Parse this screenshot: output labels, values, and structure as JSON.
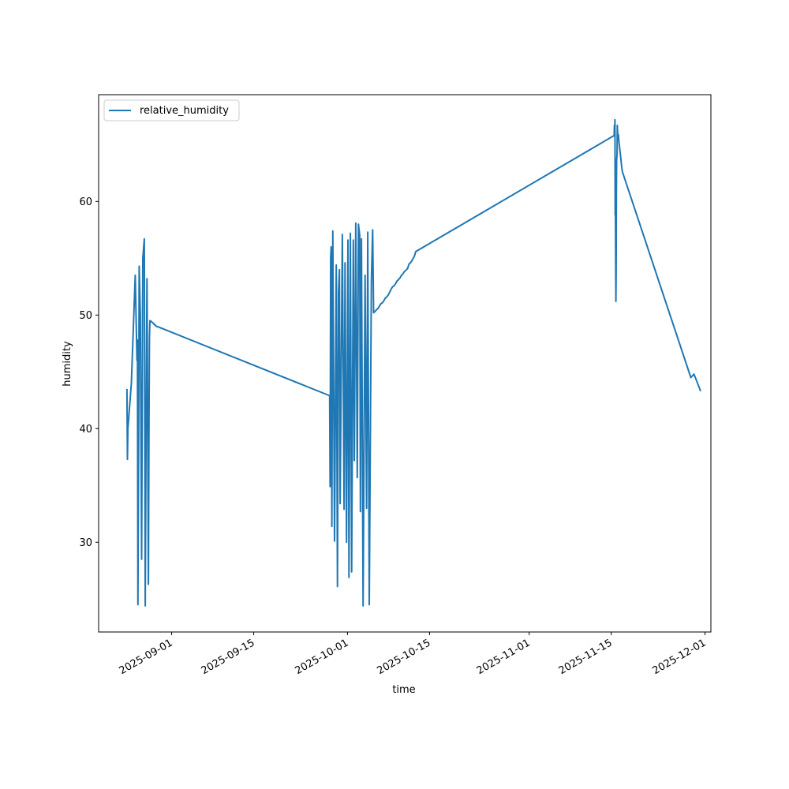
{
  "chart_data": {
    "type": "line",
    "title": "",
    "xlabel": "time",
    "ylabel": "humidity",
    "xlim": [
      "2025-08-19T13:00",
      "2025-12-02T00:00"
    ],
    "ylim": [
      22.1,
      69.4
    ],
    "x_ticks": [
      "2025-09-01",
      "2025-09-15",
      "2025-10-01",
      "2025-10-15",
      "2025-11-01",
      "2025-11-15",
      "2025-12-01"
    ],
    "y_ticks": [
      30,
      40,
      50,
      60
    ],
    "grid": false,
    "legend": {
      "position": "upper-left"
    },
    "series": [
      {
        "name": "relative_humidity",
        "color": "#1f77b4",
        "x": [
          "2025-08-24T09:00",
          "2025-08-24T11:00",
          "2025-08-24T13:00",
          "2025-08-25T03:00",
          "2025-08-25T19:00",
          "2025-08-26T02:00",
          "2025-08-26T04:00",
          "2025-08-26T06:00",
          "2025-08-26T09:00",
          "2025-08-26T11:00",
          "2025-08-26T16:00",
          "2025-08-26T21:00",
          "2025-08-27T02:00",
          "2025-08-27T08:00",
          "2025-08-27T10:00",
          "2025-08-27T12:00",
          "2025-08-27T15:00",
          "2025-08-27T19:00",
          "2025-08-28T01:00",
          "2025-08-28T03:00",
          "2025-08-28T05:00",
          "2025-08-28T07:00",
          "2025-08-28T09:00",
          "2025-08-28T14:00",
          "2025-08-28T19:00",
          "2025-08-28T21:00",
          "2025-08-28T23:00",
          "2025-08-29T01:00",
          "2025-08-29T04:00",
          "2025-08-29T06:00",
          "2025-08-29T09:00",
          "2025-08-29T12:00",
          "2025-09-27T23:00",
          "2025-09-28T01:00",
          "2025-09-28T03:00",
          "2025-09-28T05:00",
          "2025-09-28T08:00",
          "2025-09-28T12:00",
          "2025-09-28T19:00",
          "2025-09-29T02:00",
          "2025-09-29T07:00",
          "2025-09-29T11:00",
          "2025-09-29T15:00",
          "2025-09-29T18:00",
          "2025-09-30T03:00",
          "2025-09-30T10:00",
          "2025-09-30T14:00",
          "2025-09-30T20:00",
          "2025-10-01T02:00",
          "2025-10-01T06:00",
          "2025-10-01T12:00",
          "2025-10-01T17:00",
          "2025-10-02T00:00",
          "2025-10-02T04:00",
          "2025-10-02T10:00",
          "2025-10-02T16:00",
          "2025-10-02T21:00",
          "2025-10-03T02:00",
          "2025-10-03T05:00",
          "2025-10-03T09:00",
          "2025-10-03T16:00",
          "2025-10-04T00:00",
          "2025-10-04T06:00",
          "2025-10-04T11:00",
          "2025-10-04T17:00",
          "2025-10-05T02:00",
          "2025-10-05T07:00",
          "2025-10-05T11:00",
          "2025-10-05T16:00",
          "2025-10-06T00:00",
          "2025-10-06T06:00",
          "2025-10-06T11:00",
          "2025-10-06T17:00",
          "2025-10-07T00:00",
          "2025-10-07T06:00",
          "2025-10-07T11:00",
          "2025-10-07T17:00",
          "2025-10-08T00:00",
          "2025-10-08T04:00",
          "2025-10-08T07:00",
          "2025-10-08T11:00",
          "2025-10-08T17:00",
          "2025-10-09T00:00",
          "2025-10-09T06:00",
          "2025-10-09T11:00",
          "2025-10-09T16:00",
          "2025-10-10T00:00",
          "2025-10-10T05:00",
          "2025-10-10T10:00",
          "2025-10-10T16:00",
          "2025-10-11T02:00",
          "2025-10-11T06:00",
          "2025-10-11T09:00",
          "2025-10-11T12:00",
          "2025-10-11T18:00",
          "2025-10-12T00:00",
          "2025-10-12T05:00",
          "2025-10-12T08:00",
          "2025-10-12T12:00",
          "2025-10-12T14:00",
          "2025-10-12T16:00",
          "2025-11-15T12:00",
          "2025-11-15T13:00",
          "2025-11-15T14:00",
          "2025-11-15T15:00",
          "2025-11-15T16:00",
          "2025-11-15T17:00",
          "2025-11-15T18:00",
          "2025-11-15T19:00",
          "2025-11-15T20:00",
          "2025-11-15T21:00",
          "2025-11-15T22:00",
          "2025-11-16T00:00",
          "2025-11-16T01:00",
          "2025-11-16T03:00",
          "2025-11-16T05:00",
          "2025-11-16T07:00",
          "2025-11-16T09:00",
          "2025-11-16T11:00",
          "2025-11-16T13:00",
          "2025-11-16T15:00",
          "2025-11-16T17:00",
          "2025-11-16T19:00",
          "2025-11-16T22:00",
          "2025-11-28T14:00",
          "2025-11-29T03:00",
          "2025-11-30T06:00"
        ],
        "y": [
          43.5,
          37.3,
          40.0,
          44.0,
          53.5,
          46.0,
          47.8,
          24.5,
          40.0,
          54.3,
          50.0,
          28.5,
          55.0,
          56.7,
          40.0,
          24.4,
          38.0,
          53.2,
          26.3,
          40.0,
          48.0,
          49.5,
          49.5,
          49.4,
          49.3,
          49.3,
          49.2,
          49.2,
          49.1,
          49.1,
          49.0,
          49.0,
          42.9,
          34.9,
          55.0,
          56.0,
          31.4,
          57.4,
          30.1,
          54.4,
          26.1,
          52.0,
          54.0,
          33.4,
          57.1,
          32.9,
          54.6,
          30.0,
          56.6,
          26.9,
          57.2,
          27.4,
          56.6,
          37.2,
          58.1,
          35.7,
          58.0,
          57.0,
          32.7,
          56.7,
          24.4,
          53.5,
          33.0,
          57.3,
          24.5,
          53.0,
          57.5,
          50.2,
          50.3,
          50.5,
          50.6,
          50.8,
          51.0,
          51.1,
          51.3,
          51.5,
          51.6,
          51.8,
          52.0,
          52.1,
          52.3,
          52.5,
          52.6,
          52.8,
          53.0,
          53.1,
          53.3,
          53.5,
          53.6,
          53.8,
          54.0,
          54.1,
          54.3,
          54.5,
          54.6,
          54.8,
          55.0,
          55.1,
          55.3,
          55.5,
          55.6,
          65.8,
          66.7,
          65.9,
          67.2,
          58.8,
          59.5,
          55.2,
          51.2,
          53.8,
          60.5,
          63.6,
          64.2,
          66.7,
          65.6,
          65.9,
          65.4,
          65.0,
          64.6,
          64.2,
          63.8,
          63.4,
          63.0,
          62.6,
          44.5,
          44.8,
          43.3
        ]
      }
    ]
  }
}
